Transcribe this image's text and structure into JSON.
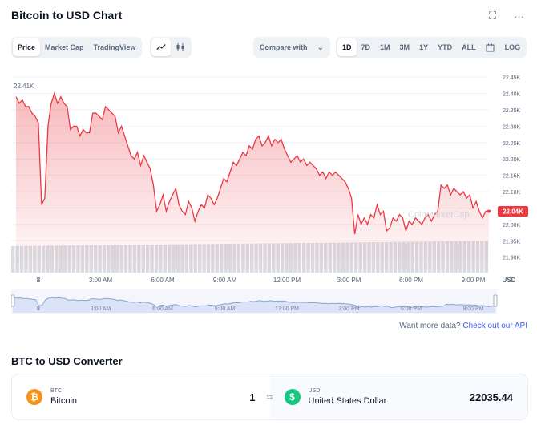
{
  "header": {
    "title": "Bitcoin to USD Chart",
    "icons": [
      "expand-icon",
      "more-icon"
    ]
  },
  "view_tabs": {
    "items": [
      "Price",
      "Market Cap",
      "TradingView"
    ],
    "active": "Price"
  },
  "chart_type_tabs": {
    "items": [
      "line-chart-icon",
      "candlestick-icon"
    ],
    "active": "line-chart-icon"
  },
  "compare": {
    "label": "Compare with"
  },
  "range_tabs": {
    "items": [
      "1D",
      "7D",
      "1M",
      "3M",
      "1Y",
      "YTD",
      "ALL"
    ],
    "active": "1D",
    "calendar_icon": "calendar-icon",
    "log_label": "LOG"
  },
  "chart_data": {
    "type": "line",
    "series": [
      {
        "values": [
          22.39,
          22.37,
          22.38,
          22.36,
          22.36,
          22.34,
          22.33,
          22.31,
          22.06,
          22.08,
          22.3,
          22.37,
          22.4,
          22.37,
          22.39,
          22.37,
          22.36,
          22.29,
          22.3,
          22.3,
          22.27,
          22.29,
          22.28,
          22.28,
          22.34,
          22.34,
          22.33,
          22.32,
          22.36,
          22.35,
          22.34,
          22.33,
          22.28,
          22.3,
          22.27,
          22.24,
          22.21,
          22.2,
          22.22,
          22.18,
          22.21,
          22.19,
          22.17,
          22.12,
          22.04,
          22.06,
          22.09,
          22.04,
          22.07,
          22.09,
          22.11,
          22.06,
          22.04,
          22.03,
          22.07,
          22.05,
          22.01,
          22.04,
          22.06,
          22.05,
          22.09,
          22.08,
          22.06,
          22.08,
          22.11,
          22.14,
          22.13,
          22.16,
          22.19,
          22.18,
          22.2,
          22.22,
          22.21,
          22.24,
          22.23,
          22.26,
          22.27,
          22.24,
          22.25,
          22.27,
          22.24,
          22.26,
          22.25,
          22.26,
          22.23,
          22.21,
          22.19,
          22.2,
          22.21,
          22.19,
          22.2,
          22.18,
          22.19,
          22.18,
          22.17,
          22.15,
          22.16,
          22.14,
          22.16,
          22.15,
          22.16,
          22.15,
          22.14,
          22.13,
          22.11,
          22.08,
          21.97,
          22.03,
          22.0,
          22.02,
          22.0,
          22.03,
          22.02,
          22.06,
          22.03,
          22.04,
          21.98,
          21.99,
          22.02,
          22.01,
          22.03,
          22.02,
          21.98,
          22.01,
          22.0,
          22.02,
          22.01,
          22.0,
          22.02,
          22.03,
          22.01,
          22.03,
          22.04,
          22.12,
          22.11,
          22.12,
          22.09,
          22.11,
          22.1,
          22.09,
          22.1,
          22.08,
          22.09,
          22.05,
          22.07,
          22.04,
          22.02,
          22.04,
          22.04
        ]
      }
    ],
    "yaxis": {
      "ticks": [
        "22.45K",
        "22.40K",
        "22.35K",
        "22.30K",
        "22.25K",
        "22.20K",
        "22.15K",
        "22.10K",
        "22.05K",
        "22.00K",
        "21.95K",
        "21.90K"
      ],
      "min": 21.86,
      "max": 22.47
    },
    "xaxis": {
      "ticks": [
        "8",
        "3:00 AM",
        "6:00 AM",
        "9:00 AM",
        "12:00 PM",
        "3:00 PM",
        "6:00 PM",
        "9:00 PM"
      ],
      "unit_label": "USD"
    },
    "open_label": "22.41K",
    "current_label": "22.04K",
    "watermark": "CoinMarketCap",
    "colors": {
      "line": "#ea3943",
      "fill": "#ea3943",
      "volume": "#d9dde3",
      "overview_fill": "#dbe4f6",
      "overview_line": "#8ca3d7"
    }
  },
  "footer": {
    "prefix": "Want more data? ",
    "link": "Check out our API"
  },
  "converter": {
    "title": "BTC to USD Converter",
    "from": {
      "symbol": "BTC",
      "name": "Bitcoin",
      "amount": "1",
      "icon": "bitcoin-icon"
    },
    "to": {
      "symbol": "USD",
      "name": "United States Dollar",
      "amount": "22035.44",
      "icon": "dollar-icon"
    },
    "swap_icon": "swap-icon"
  }
}
